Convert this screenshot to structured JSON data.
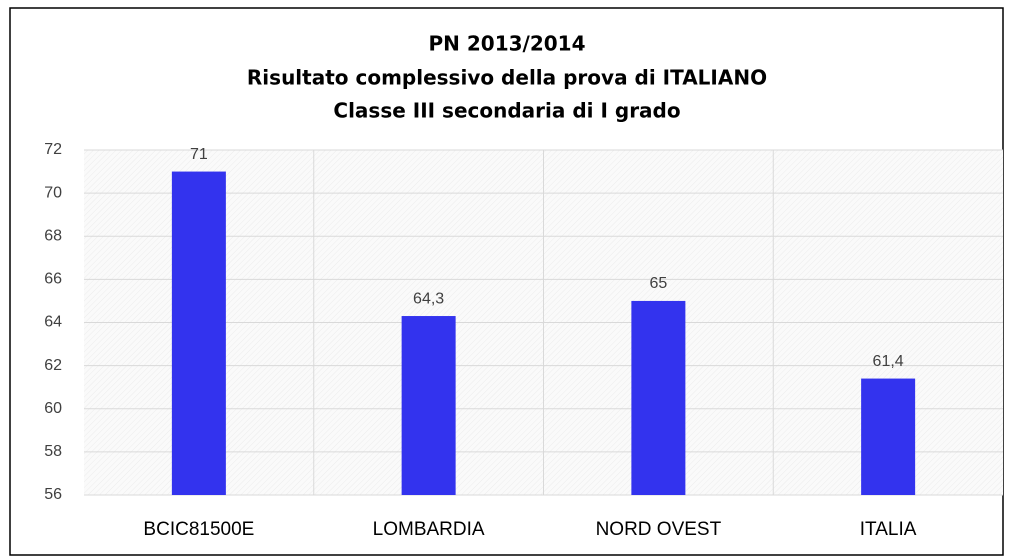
{
  "chart_data": {
    "type": "bar",
    "title": [
      "PN 2013/2014",
      "Risultato complessivo della prova di ITALIANO",
      "Classe  III secondaria di I grado"
    ],
    "categories": [
      "BCIC81500E",
      "LOMBARDIA",
      "NORD OVEST",
      "ITALIA"
    ],
    "values": [
      71,
      64.3,
      65,
      61.4
    ],
    "value_labels": [
      "71",
      "64,3",
      "65",
      "61,4"
    ],
    "color": "#3333ee",
    "ylim": [
      56,
      72
    ],
    "yticks": [
      56,
      58,
      60,
      62,
      64,
      66,
      68,
      70,
      72
    ],
    "grid": true
  }
}
